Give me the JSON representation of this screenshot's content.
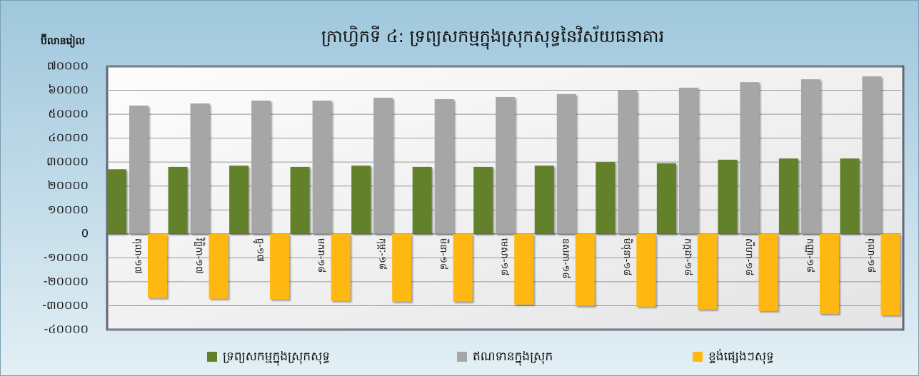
{
  "chart_data": {
    "type": "bar",
    "title": "ក្រាហ្វិកទី ៤: ទ្រព្យសកម្មក្នុងស្រុកសុទ្ធនៃវិស័យធនាគារ",
    "y_label": "ប៊ីលានរៀល",
    "categories": [
      "តុលា-១៧",
      "វិច្ឆិកា-១៧",
      "ធ្នូ-១៧",
      "មករា-១៨",
      "កុម្ភៈ-១៨",
      "មីនា-១៨",
      "មេសា-១៨",
      "ឧសភា-១៨",
      "មិថុនា-១៨",
      "កក្កដា-១៨",
      "សីហា-១៨",
      "កញ្ញា-១៨",
      "តុលា-១៨"
    ],
    "series": [
      {
        "name": "ទ្រព្យសកម្មក្នុងស្រុកសុទ្ធ",
        "color": "#63802b",
        "values": [
          27000,
          28000,
          28500,
          28000,
          28500,
          28000,
          28000,
          28500,
          30000,
          29500,
          31000,
          31500,
          31500
        ]
      },
      {
        "name": "ឥណទានក្នុងស្រុក",
        "color": "#a6a6a6",
        "values": [
          53600,
          54500,
          55700,
          55700,
          56900,
          56300,
          57200,
          58400,
          59900,
          61100,
          63400,
          64600,
          65800
        ]
      },
      {
        "name": "ខ្ទង់ផ្សេងៗសុទ្ធ",
        "color": "#ffb812",
        "values": [
          -26800,
          -27100,
          -27400,
          -28000,
          -28300,
          -28300,
          -29500,
          -30100,
          -30400,
          -31600,
          -32200,
          -33400,
          -34000
        ]
      }
    ],
    "ylim": [
      -40000,
      70000
    ],
    "yticks": [
      {
        "value": -40000,
        "label": "-៤០០០០"
      },
      {
        "value": -30000,
        "label": "-៣០០០០"
      },
      {
        "value": -20000,
        "label": "-២០០០០"
      },
      {
        "value": -10000,
        "label": "-១០០០០"
      },
      0,
      {
        "value": 10000,
        "label": "១០០០០"
      },
      {
        "value": 20000,
        "label": "២០០០០"
      },
      {
        "value": 30000,
        "label": "៣០០០០"
      },
      {
        "value": 40000,
        "label": "៤០០០០"
      },
      {
        "value": 50000,
        "label": "៥០០០០"
      },
      {
        "value": 60000,
        "label": "៦០០០០"
      },
      {
        "value": 70000,
        "label": "៧០០០០"
      }
    ],
    "grid": true
  }
}
